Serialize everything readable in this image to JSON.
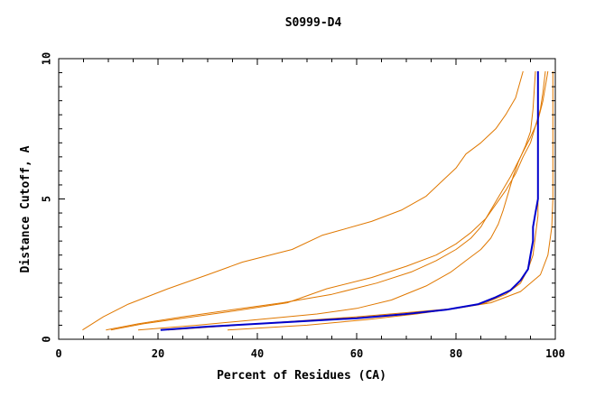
{
  "chart_data": {
    "type": "line",
    "title": "S0999-D4",
    "xlabel": "Percent of Residues (CA)",
    "ylabel": "Distance Cutoff, A",
    "xlim": [
      0,
      100
    ],
    "ylim": [
      0,
      10
    ],
    "x_ticks": [
      "0",
      "20",
      "40",
      "60",
      "80",
      "100"
    ],
    "y_ticks": [
      "0",
      "5",
      "10"
    ],
    "grid": false,
    "legend": "none",
    "colors": {
      "background_series": "#e07800",
      "highlight_series": "#0000cc",
      "axes": "#000000"
    },
    "series": [
      {
        "highlight": false,
        "points": [
          [
            4.8,
            0.33
          ],
          [
            9,
            0.8
          ],
          [
            14,
            1.25
          ],
          [
            22,
            1.8
          ],
          [
            30,
            2.3
          ],
          [
            37,
            2.75
          ],
          [
            47,
            3.2
          ],
          [
            53,
            3.7
          ],
          [
            63,
            4.2
          ],
          [
            69,
            4.6
          ],
          [
            74,
            5.1
          ],
          [
            77,
            5.6
          ],
          [
            80,
            6.1
          ],
          [
            82,
            6.6
          ],
          [
            85,
            7.0
          ],
          [
            88,
            7.5
          ],
          [
            90,
            8.0
          ],
          [
            92,
            8.6
          ],
          [
            93.5,
            9.55
          ]
        ]
      },
      {
        "highlight": false,
        "points": [
          [
            10.5,
            0.33
          ],
          [
            17,
            0.55
          ],
          [
            27,
            0.8
          ],
          [
            37,
            1.05
          ],
          [
            46,
            1.3
          ],
          [
            54,
            1.8
          ],
          [
            63,
            2.2
          ],
          [
            70,
            2.6
          ],
          [
            76,
            3.0
          ],
          [
            80,
            3.4
          ],
          [
            83,
            3.8
          ],
          [
            86,
            4.3
          ],
          [
            88,
            4.8
          ],
          [
            90,
            5.3
          ],
          [
            92,
            5.9
          ],
          [
            93.5,
            6.5
          ],
          [
            95,
            7.0
          ],
          [
            96,
            7.6
          ],
          [
            97,
            8.2
          ],
          [
            97.5,
            8.8
          ],
          [
            98,
            9.55
          ]
        ]
      },
      {
        "highlight": false,
        "points": [
          [
            9.5,
            0.33
          ],
          [
            16,
            0.55
          ],
          [
            25,
            0.8
          ],
          [
            35,
            1.05
          ],
          [
            45,
            1.3
          ],
          [
            55,
            1.6
          ],
          [
            64,
            2.0
          ],
          [
            71,
            2.4
          ],
          [
            76,
            2.8
          ],
          [
            80,
            3.2
          ],
          [
            83,
            3.6
          ],
          [
            85,
            4.0
          ],
          [
            87,
            4.6
          ],
          [
            89,
            5.2
          ],
          [
            91,
            5.8
          ],
          [
            93,
            6.5
          ],
          [
            95,
            7.2
          ],
          [
            96.5,
            7.8
          ],
          [
            97.5,
            8.5
          ],
          [
            98.5,
            9.55
          ]
        ]
      },
      {
        "highlight": false,
        "points": [
          [
            16,
            0.33
          ],
          [
            28,
            0.5
          ],
          [
            40,
            0.7
          ],
          [
            52,
            0.9
          ],
          [
            60,
            1.1
          ],
          [
            67,
            1.4
          ],
          [
            74,
            1.9
          ],
          [
            79,
            2.4
          ],
          [
            82,
            2.8
          ],
          [
            85,
            3.2
          ],
          [
            87,
            3.6
          ],
          [
            88.5,
            4.1
          ],
          [
            89.5,
            4.6
          ],
          [
            90.5,
            5.2
          ],
          [
            91.5,
            5.8
          ],
          [
            92.5,
            6.3
          ],
          [
            94,
            6.9
          ],
          [
            95,
            7.4
          ],
          [
            95.5,
            8.2
          ],
          [
            96,
            9.55
          ]
        ]
      },
      {
        "highlight": false,
        "points": [
          [
            34,
            0.33
          ],
          [
            50,
            0.5
          ],
          [
            62,
            0.7
          ],
          [
            72,
            0.9
          ],
          [
            80,
            1.1
          ],
          [
            86,
            1.3
          ],
          [
            90,
            1.6
          ],
          [
            93,
            2.0
          ],
          [
            94.5,
            2.5
          ],
          [
            95.5,
            3.0
          ],
          [
            96,
            3.7
          ],
          [
            96.5,
            4.4
          ],
          [
            96.5,
            5.2
          ],
          [
            96.5,
            6.0
          ],
          [
            96.5,
            6.8
          ],
          [
            96.5,
            7.6
          ],
          [
            96.5,
            9.55
          ]
        ]
      },
      {
        "highlight": false,
        "points": [
          [
            22,
            0.33
          ],
          [
            36,
            0.5
          ],
          [
            48,
            0.65
          ],
          [
            60,
            0.8
          ],
          [
            70,
            0.95
          ],
          [
            80,
            1.1
          ],
          [
            87,
            1.3
          ],
          [
            93,
            1.7
          ],
          [
            97,
            2.3
          ],
          [
            98.5,
            3.0
          ],
          [
            99.3,
            4.0
          ],
          [
            99.5,
            5.0
          ],
          [
            99.5,
            6.0
          ],
          [
            99.5,
            7.0
          ],
          [
            99.5,
            8.0
          ],
          [
            99.5,
            9.55
          ]
        ]
      },
      {
        "highlight": true,
        "points": [
          [
            20.5,
            0.33
          ],
          [
            30,
            0.45
          ],
          [
            40,
            0.55
          ],
          [
            50,
            0.65
          ],
          [
            60,
            0.75
          ],
          [
            70,
            0.9
          ],
          [
            78,
            1.05
          ],
          [
            84.5,
            1.25
          ],
          [
            88,
            1.5
          ],
          [
            91,
            1.75
          ],
          [
            93,
            2.1
          ],
          [
            94.5,
            2.5
          ],
          [
            95,
            3.0
          ],
          [
            95.5,
            3.5
          ],
          [
            95.5,
            4.0
          ],
          [
            96,
            4.5
          ],
          [
            96.5,
            5.0
          ],
          [
            96.5,
            5.5
          ],
          [
            96.5,
            6.5
          ],
          [
            96.5,
            7.5
          ],
          [
            96.5,
            9.55
          ]
        ]
      }
    ]
  }
}
